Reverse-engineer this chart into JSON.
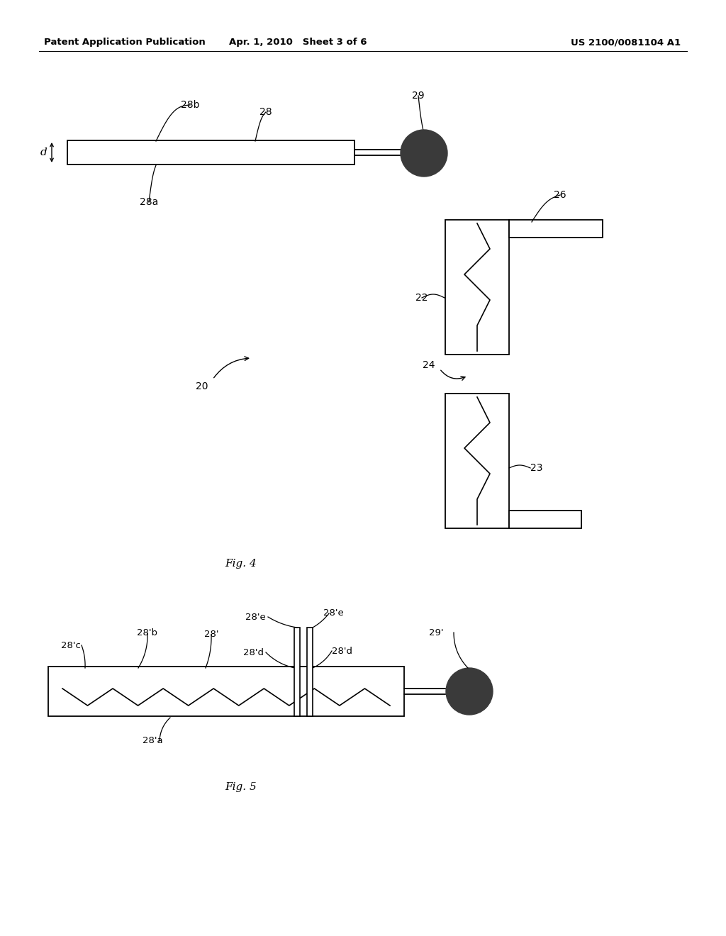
{
  "bg_color": "#ffffff",
  "header_left": "Patent Application Publication",
  "header_mid": "Apr. 1, 2010   Sheet 3 of 6",
  "header_right": "US 2100/0081104 A1",
  "fig4_label": "Fig. 4",
  "fig5_label": "Fig. 5"
}
